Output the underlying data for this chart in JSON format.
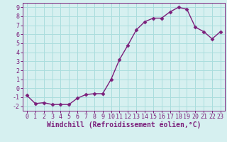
{
  "x": [
    0,
    1,
    2,
    3,
    4,
    5,
    6,
    7,
    8,
    9,
    10,
    11,
    12,
    13,
    14,
    15,
    16,
    17,
    18,
    19,
    20,
    21,
    22,
    23
  ],
  "y": [
    -0.8,
    -1.7,
    -1.6,
    -1.8,
    -1.8,
    -1.8,
    -1.1,
    -0.7,
    -0.6,
    -0.6,
    1.0,
    3.2,
    4.8,
    6.5,
    7.4,
    7.8,
    7.8,
    8.5,
    9.0,
    8.8,
    6.8,
    6.3,
    5.5,
    6.3
  ],
  "xlabel": "Windchill (Refroidissement éolien,°C)",
  "ylim": [
    -2.5,
    9.5
  ],
  "xlim": [
    -0.5,
    23.5
  ],
  "yticks": [
    -2,
    -1,
    0,
    1,
    2,
    3,
    4,
    5,
    6,
    7,
    8,
    9
  ],
  "xticks": [
    0,
    1,
    2,
    3,
    4,
    5,
    6,
    7,
    8,
    9,
    10,
    11,
    12,
    13,
    14,
    15,
    16,
    17,
    18,
    19,
    20,
    21,
    22,
    23
  ],
  "line_color": "#7b1f7b",
  "marker_color": "#7b1f7b",
  "bg_color": "#d6f0f0",
  "grid_color": "#aadddd",
  "xlabel_fontsize": 7,
  "tick_fontsize": 6,
  "line_width": 1.0,
  "marker_size": 2.5
}
